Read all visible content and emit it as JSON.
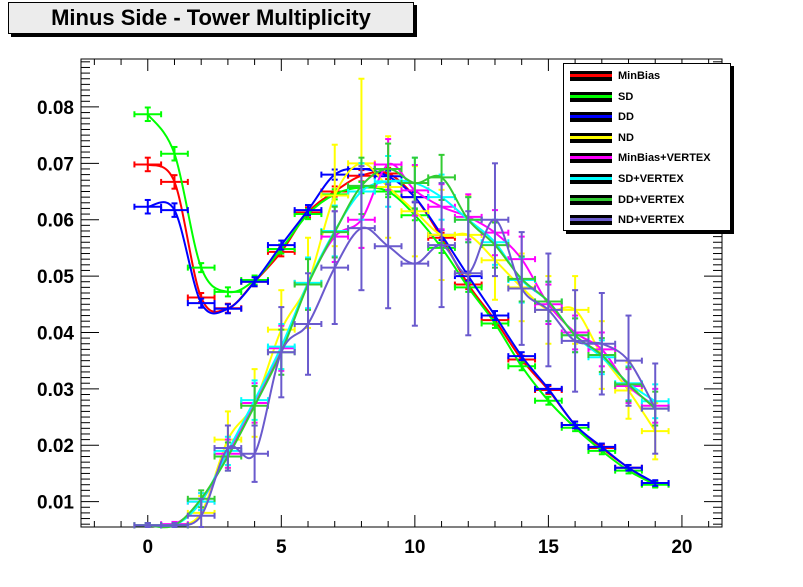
{
  "title": "Minus Side - Tower Multiplicity",
  "chart_data": {
    "type": "line",
    "title": "Minus Side - Tower Multiplicity",
    "xlabel": "",
    "ylabel": "",
    "xlim": [
      -2.5,
      21.5
    ],
    "ylim": [
      0.0055,
      0.0885
    ],
    "x_ticks": [
      "0",
      "5",
      "10",
      "15",
      "20"
    ],
    "y_ticks": [
      "0.01",
      "0.02",
      "0.03",
      "0.04",
      "0.05",
      "0.06",
      "0.07",
      "0.08"
    ],
    "grid": false,
    "legend_position": "top-right",
    "series": [
      {
        "name": "MinBias",
        "color": "#ff0000",
        "x": [
          0,
          1,
          2,
          3,
          4,
          5,
          6,
          7,
          8,
          9,
          10,
          11,
          12,
          13,
          14,
          15,
          16,
          17,
          18,
          19
        ],
        "y": [
          0.0698,
          0.0667,
          0.0462,
          0.0443,
          0.049,
          0.0543,
          0.0613,
          0.065,
          0.0678,
          0.0682,
          0.064,
          0.0568,
          0.0485,
          0.0422,
          0.0352,
          0.0298,
          0.0236,
          0.0195,
          0.016,
          0.0131
        ],
        "err": [
          0.0012,
          0.0012,
          0.0008,
          0.0008,
          0.0008,
          0.0008,
          0.0009,
          0.0009,
          0.001,
          0.001,
          0.0009,
          0.0009,
          0.0008,
          0.0008,
          0.0007,
          0.0007,
          0.0006,
          0.0006,
          0.0005,
          0.0005
        ]
      },
      {
        "name": "SD",
        "color": "#00ff00",
        "x": [
          0,
          1,
          2,
          3,
          4,
          5,
          6,
          7,
          8,
          9,
          10,
          11,
          12,
          13,
          14,
          15,
          16,
          17,
          18,
          19
        ],
        "y": [
          0.0787,
          0.0717,
          0.0515,
          0.0472,
          0.0493,
          0.0548,
          0.061,
          0.0645,
          0.0657,
          0.065,
          0.0608,
          0.055,
          0.048,
          0.0416,
          0.034,
          0.0279,
          0.0231,
          0.019,
          0.0155,
          0.013
        ],
        "err": [
          0.0012,
          0.0012,
          0.0008,
          0.0008,
          0.0008,
          0.0008,
          0.0009,
          0.0009,
          0.001,
          0.001,
          0.0009,
          0.0009,
          0.0008,
          0.0008,
          0.0007,
          0.0007,
          0.0006,
          0.0006,
          0.0005,
          0.0005
        ]
      },
      {
        "name": "DD",
        "color": "#0000ff",
        "x": [
          0,
          1,
          2,
          3,
          4,
          5,
          6,
          7,
          8,
          9,
          10,
          11,
          12,
          13,
          14,
          15,
          16,
          17,
          18,
          19
        ],
        "y": [
          0.0623,
          0.0617,
          0.0452,
          0.0442,
          0.049,
          0.0555,
          0.0617,
          0.068,
          0.069,
          0.0677,
          0.064,
          0.0573,
          0.05,
          0.043,
          0.0358,
          0.03,
          0.0236,
          0.0197,
          0.016,
          0.0133
        ],
        "err": [
          0.0012,
          0.0012,
          0.0008,
          0.0008,
          0.0008,
          0.0008,
          0.0009,
          0.0009,
          0.001,
          0.001,
          0.0009,
          0.0009,
          0.0008,
          0.0008,
          0.0007,
          0.0007,
          0.0006,
          0.0006,
          0.0005,
          0.0005
        ]
      },
      {
        "name": "ND",
        "color": "#ffff00",
        "x": [
          0,
          1,
          2,
          3,
          4,
          5,
          6,
          7,
          8,
          9,
          10,
          11,
          12,
          13,
          14,
          15,
          16,
          17,
          18,
          19
        ],
        "y": [
          0.0058,
          0.0058,
          0.008,
          0.021,
          0.0275,
          0.0405,
          0.0488,
          0.0643,
          0.07,
          0.0658,
          0.0615,
          0.0573,
          0.0573,
          0.0528,
          0.048,
          0.044,
          0.044,
          0.036,
          0.0297,
          0.0225
        ],
        "err": [
          0.0004,
          0.0004,
          0.003,
          0.005,
          0.006,
          0.007,
          0.008,
          0.009,
          0.015,
          0.009,
          0.008,
          0.008,
          0.007,
          0.007,
          0.006,
          0.006,
          0.006,
          0.006,
          0.005,
          0.005
        ]
      },
      {
        "name": "MinBias+VERTEX",
        "color": "#ff00ff",
        "x": [
          0,
          1,
          2,
          3,
          4,
          5,
          6,
          7,
          8,
          9,
          10,
          11,
          12,
          13,
          14,
          15,
          16,
          17,
          18,
          19
        ],
        "y": [
          0.0058,
          0.006,
          0.01,
          0.0185,
          0.0275,
          0.0372,
          0.0487,
          0.057,
          0.06,
          0.0698,
          0.0652,
          0.0623,
          0.0605,
          0.0577,
          0.053,
          0.045,
          0.04,
          0.037,
          0.0305,
          0.027
        ],
        "err": [
          0.0004,
          0.0004,
          0.0015,
          0.0025,
          0.0035,
          0.004,
          0.0045,
          0.0045,
          0.005,
          0.0045,
          0.0045,
          0.004,
          0.004,
          0.004,
          0.004,
          0.0035,
          0.003,
          0.003,
          0.003,
          0.003
        ]
      },
      {
        "name": "SD+VERTEX",
        "color": "#00ffff",
        "x": [
          0,
          1,
          2,
          3,
          4,
          5,
          6,
          7,
          8,
          9,
          10,
          11,
          12,
          13,
          14,
          15,
          16,
          17,
          18,
          19
        ],
        "y": [
          0.0058,
          0.0058,
          0.01,
          0.019,
          0.028,
          0.0375,
          0.0488,
          0.058,
          0.065,
          0.0668,
          0.0665,
          0.064,
          0.06,
          0.056,
          0.0493,
          0.0455,
          0.0395,
          0.0356,
          0.031,
          0.0278
        ],
        "err": [
          0.0004,
          0.0004,
          0.0015,
          0.0025,
          0.0035,
          0.004,
          0.0045,
          0.0045,
          0.005,
          0.0045,
          0.0045,
          0.004,
          0.004,
          0.004,
          0.004,
          0.0035,
          0.003,
          0.003,
          0.003,
          0.003
        ]
      },
      {
        "name": "DD+VERTEX",
        "color": "#33cc33",
        "x": [
          0,
          1,
          2,
          3,
          4,
          5,
          6,
          7,
          8,
          9,
          10,
          11,
          12,
          13,
          14,
          15,
          16,
          17,
          18,
          19
        ],
        "y": [
          0.0058,
          0.0058,
          0.0105,
          0.018,
          0.027,
          0.0365,
          0.0485,
          0.0578,
          0.066,
          0.069,
          0.0665,
          0.0675,
          0.06,
          0.0555,
          0.0495,
          0.0455,
          0.0395,
          0.036,
          0.0308,
          0.0265
        ],
        "err": [
          0.0004,
          0.0004,
          0.0015,
          0.0025,
          0.0035,
          0.004,
          0.0045,
          0.0045,
          0.005,
          0.0045,
          0.0045,
          0.004,
          0.004,
          0.004,
          0.004,
          0.0035,
          0.003,
          0.003,
          0.003,
          0.003
        ]
      },
      {
        "name": "ND+VERTEX",
        "color": "#6a5acd",
        "x": [
          0,
          1,
          2,
          3,
          4,
          5,
          6,
          7,
          8,
          9,
          10,
          11,
          12,
          13,
          14,
          15,
          16,
          17,
          18,
          19
        ],
        "y": [
          0.0058,
          0.0058,
          0.0075,
          0.0195,
          0.0185,
          0.0365,
          0.0415,
          0.0515,
          0.0585,
          0.0553,
          0.0522,
          0.0555,
          0.0505,
          0.06,
          0.0478,
          0.044,
          0.0385,
          0.038,
          0.035,
          0.0265
        ],
        "err": [
          0.0004,
          0.0004,
          0.003,
          0.004,
          0.005,
          0.008,
          0.009,
          0.01,
          0.011,
          0.011,
          0.011,
          0.011,
          0.011,
          0.01,
          0.01,
          0.01,
          0.009,
          0.009,
          0.008,
          0.008
        ]
      }
    ]
  }
}
